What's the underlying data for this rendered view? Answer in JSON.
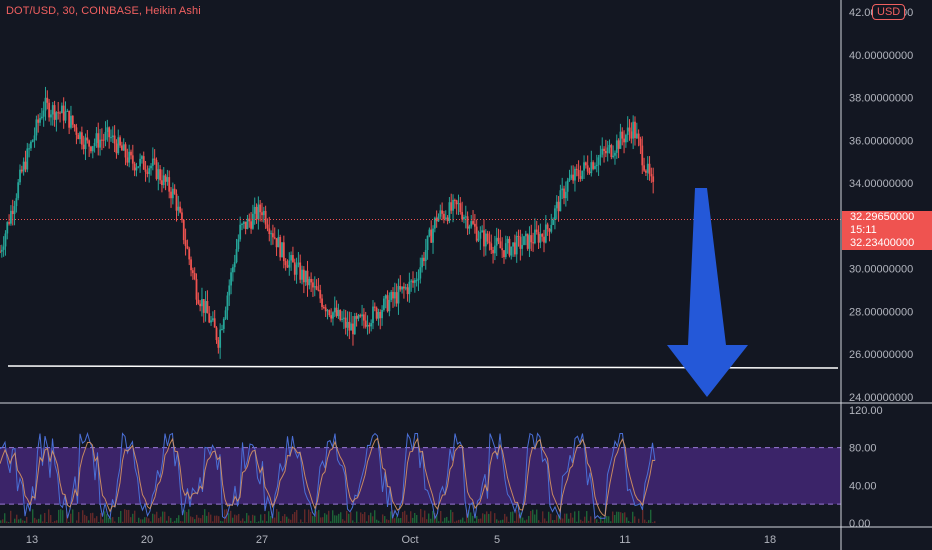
{
  "header": {
    "symbol_title": "DOT/USD, 30, COINBASE, Heikin Ashi",
    "currency": "USD"
  },
  "price_scale": {
    "top_label": "42.00000000",
    "labels": [
      "40.00000000",
      "38.00000000",
      "36.00000000",
      "34.00000000",
      "30.00000000",
      "28.00000000",
      "26.00000000",
      "24.00000000"
    ],
    "current_price": "32.29650000",
    "countdown": "15:11",
    "second_price": "32.23400000"
  },
  "oscillator_scale": {
    "labels": [
      "120.00",
      "80.00",
      "40.00",
      "0.00"
    ]
  },
  "time_axis": {
    "labels": [
      "13",
      "20",
      "27",
      "Oct",
      "5",
      "11",
      "18"
    ]
  },
  "colors": {
    "background": "#131722",
    "bull": "#26a69a",
    "bear": "#ef5350",
    "arrow": "#2458d8",
    "band": "#4a2a82",
    "support_line": "#ffffff"
  },
  "icons": {
    "arrow": "down-arrow-icon"
  },
  "chart_data": [
    {
      "type": "line",
      "style": "heikin-ashi candlestick",
      "x": [
        "Sep 12",
        "Sep 13",
        "Sep 14",
        "Sep 15",
        "Sep 16",
        "Sep 17",
        "Sep 18",
        "Sep 19",
        "Sep 20",
        "Sep 21",
        "Sep 22",
        "Sep 23",
        "Sep 24",
        "Sep 25",
        "Sep 26",
        "Sep 27",
        "Sep 28",
        "Sep 29",
        "Sep 30",
        "Oct 1",
        "Oct 2",
        "Oct 3",
        "Oct 4",
        "Oct 5",
        "Oct 6",
        "Oct 7",
        "Oct 8",
        "Oct 9",
        "Oct 10",
        "Oct 11",
        "Oct 12"
      ],
      "series": [
        {
          "values": [
            30.8,
            34.5,
            37.6,
            37.2,
            35.8,
            36.2,
            35.0,
            34.8,
            33.4,
            29.0,
            26.7,
            31.8,
            32.8,
            30.6,
            29.5,
            28.2,
            27.2,
            27.8,
            28.6,
            29.4,
            32.4,
            32.9,
            31.5,
            30.9,
            31.2,
            31.7,
            34.0,
            34.9,
            35.6,
            36.6,
            33.4
          ]
        }
      ],
      "annotations": [
        "horizontal support line near 25.5",
        "down arrow pointing toward 24.0"
      ],
      "ylim": [
        24,
        42
      ],
      "grid": false
    },
    {
      "type": "line",
      "style": "stochastic oscillator",
      "ylim": [
        0,
        120
      ],
      "band": [
        20,
        80
      ]
    }
  ]
}
